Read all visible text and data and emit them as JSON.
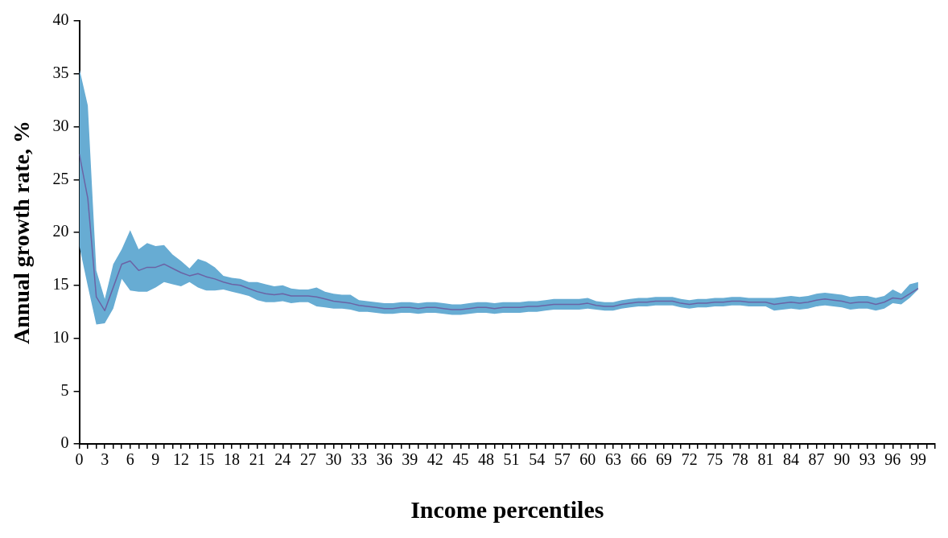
{
  "chart_data": {
    "type": "line",
    "xlabel": "Income percentiles",
    "ylabel": "Annual growth rate, %",
    "x": [
      0,
      1,
      2,
      3,
      4,
      5,
      6,
      7,
      8,
      9,
      10,
      11,
      12,
      13,
      14,
      15,
      16,
      17,
      18,
      19,
      20,
      21,
      22,
      23,
      24,
      25,
      26,
      27,
      28,
      29,
      30,
      31,
      32,
      33,
      34,
      35,
      36,
      37,
      38,
      39,
      40,
      41,
      42,
      43,
      44,
      45,
      46,
      47,
      48,
      49,
      50,
      51,
      52,
      53,
      54,
      55,
      56,
      57,
      58,
      59,
      60,
      61,
      62,
      63,
      64,
      65,
      66,
      67,
      68,
      69,
      70,
      71,
      72,
      73,
      74,
      75,
      76,
      77,
      78,
      79,
      80,
      81,
      82,
      83,
      84,
      85,
      86,
      87,
      88,
      89,
      90,
      91,
      92,
      93,
      94,
      95,
      96,
      97,
      98,
      99
    ],
    "series": [
      {
        "color": "#6b63a5",
        "values": [
          27.4,
          23.2,
          13.9,
          12.6,
          14.8,
          17.0,
          17.3,
          16.4,
          16.7,
          16.7,
          17.0,
          16.6,
          16.2,
          15.9,
          16.1,
          15.8,
          15.6,
          15.3,
          15.1,
          15.0,
          14.7,
          14.4,
          14.2,
          14.1,
          14.2,
          14.0,
          14.0,
          14.0,
          13.9,
          13.7,
          13.5,
          13.4,
          13.3,
          13.1,
          13.0,
          12.9,
          12.8,
          12.8,
          12.9,
          12.9,
          12.8,
          12.9,
          12.9,
          12.8,
          12.7,
          12.7,
          12.8,
          12.9,
          12.9,
          12.8,
          12.9,
          12.9,
          12.9,
          13.0,
          13.0,
          13.1,
          13.2,
          13.2,
          13.2,
          13.2,
          13.3,
          13.1,
          13.0,
          13.0,
          13.2,
          13.3,
          13.4,
          13.4,
          13.5,
          13.5,
          13.5,
          13.3,
          13.2,
          13.3,
          13.3,
          13.4,
          13.4,
          13.5,
          13.5,
          13.4,
          13.4,
          13.4,
          13.2,
          13.3,
          13.4,
          13.3,
          13.4,
          13.6,
          13.7,
          13.6,
          13.5,
          13.3,
          13.4,
          13.4,
          13.2,
          13.4,
          13.8,
          13.7,
          14.2,
          14.7
        ],
        "lower": [
          18.7,
          14.9,
          11.3,
          11.4,
          12.8,
          15.6,
          14.5,
          14.4,
          14.4,
          14.8,
          15.3,
          15.1,
          14.9,
          15.3,
          14.8,
          14.5,
          14.5,
          14.6,
          14.4,
          14.2,
          14.0,
          13.6,
          13.4,
          13.4,
          13.5,
          13.3,
          13.4,
          13.4,
          13.0,
          12.9,
          12.8,
          12.8,
          12.7,
          12.5,
          12.5,
          12.4,
          12.3,
          12.3,
          12.4,
          12.4,
          12.3,
          12.4,
          12.4,
          12.3,
          12.2,
          12.2,
          12.3,
          12.4,
          12.4,
          12.3,
          12.4,
          12.4,
          12.4,
          12.5,
          12.5,
          12.6,
          12.7,
          12.7,
          12.7,
          12.7,
          12.8,
          12.7,
          12.6,
          12.6,
          12.8,
          12.9,
          13.0,
          13.0,
          13.1,
          13.1,
          13.1,
          12.9,
          12.8,
          12.9,
          12.9,
          13.0,
          13.0,
          13.1,
          13.1,
          13.0,
          13.0,
          13.0,
          12.6,
          12.7,
          12.8,
          12.7,
          12.8,
          13.0,
          13.1,
          13.0,
          12.9,
          12.7,
          12.8,
          12.8,
          12.6,
          12.8,
          13.3,
          13.2,
          13.8,
          14.6
        ],
        "upper": [
          35.5,
          32.0,
          16.4,
          13.7,
          17.0,
          18.4,
          20.2,
          18.4,
          19.0,
          18.7,
          18.8,
          17.9,
          17.3,
          16.6,
          17.5,
          17.2,
          16.7,
          15.9,
          15.7,
          15.6,
          15.3,
          15.3,
          15.1,
          14.9,
          15.0,
          14.7,
          14.6,
          14.6,
          14.8,
          14.4,
          14.2,
          14.1,
          14.1,
          13.6,
          13.5,
          13.4,
          13.3,
          13.3,
          13.4,
          13.4,
          13.3,
          13.4,
          13.4,
          13.3,
          13.2,
          13.2,
          13.3,
          13.4,
          13.4,
          13.3,
          13.4,
          13.4,
          13.4,
          13.5,
          13.5,
          13.6,
          13.7,
          13.7,
          13.7,
          13.7,
          13.8,
          13.5,
          13.4,
          13.4,
          13.6,
          13.7,
          13.8,
          13.8,
          13.9,
          13.9,
          13.9,
          13.7,
          13.6,
          13.7,
          13.7,
          13.8,
          13.8,
          13.9,
          13.9,
          13.8,
          13.8,
          13.8,
          13.8,
          13.9,
          14.0,
          13.9,
          14.0,
          14.2,
          14.3,
          14.2,
          14.1,
          13.9,
          14.0,
          14.0,
          13.8,
          14.0,
          14.6,
          14.2,
          15.1,
          15.3
        ]
      }
    ],
    "xlim": [
      0,
      101
    ],
    "ylim": [
      0,
      40
    ],
    "xticks": [
      0,
      {
        "value": 1,
        "label": null
      },
      {
        "value": 2,
        "label": null
      },
      3,
      {
        "value": 4,
        "label": null
      },
      {
        "value": 5,
        "label": null
      },
      6,
      {
        "value": 7,
        "label": null
      },
      {
        "value": 8,
        "label": null
      },
      9,
      {
        "value": 10,
        "label": null
      },
      {
        "value": 11,
        "label": null
      },
      12,
      {
        "value": 13,
        "label": null
      },
      {
        "value": 14,
        "label": null
      },
      15,
      {
        "value": 16,
        "label": null
      },
      {
        "value": 17,
        "label": null
      },
      18,
      {
        "value": 19,
        "label": null
      },
      {
        "value": 20,
        "label": null
      },
      21,
      {
        "value": 22,
        "label": null
      },
      {
        "value": 23,
        "label": null
      },
      24,
      {
        "value": 25,
        "label": null
      },
      {
        "value": 26,
        "label": null
      },
      27,
      {
        "value": 28,
        "label": null
      },
      {
        "value": 29,
        "label": null
      },
      30,
      {
        "value": 31,
        "label": null
      },
      {
        "value": 32,
        "label": null
      },
      33,
      {
        "value": 34,
        "label": null
      },
      {
        "value": 35,
        "label": null
      },
      36,
      {
        "value": 37,
        "label": null
      },
      {
        "value": 38,
        "label": null
      },
      39,
      {
        "value": 40,
        "label": null
      },
      {
        "value": 41,
        "label": null
      },
      42,
      {
        "value": 43,
        "label": null
      },
      {
        "value": 44,
        "label": null
      },
      45,
      {
        "value": 46,
        "label": null
      },
      {
        "value": 47,
        "label": null
      },
      48,
      {
        "value": 49,
        "label": null
      },
      {
        "value": 50,
        "label": null
      },
      51,
      {
        "value": 52,
        "label": null
      },
      {
        "value": 53,
        "label": null
      },
      54,
      {
        "value": 55,
        "label": null
      },
      {
        "value": 56,
        "label": null
      },
      57,
      {
        "value": 58,
        "label": null
      },
      {
        "value": 59,
        "label": null
      },
      60,
      {
        "value": 61,
        "label": null
      },
      {
        "value": 62,
        "label": null
      },
      63,
      {
        "value": 64,
        "label": null
      },
      {
        "value": 65,
        "label": null
      },
      66,
      {
        "value": 67,
        "label": null
      },
      {
        "value": 68,
        "label": null
      },
      69,
      {
        "value": 70,
        "label": null
      },
      {
        "value": 71,
        "label": null
      },
      72,
      {
        "value": 73,
        "label": null
      },
      {
        "value": 74,
        "label": null
      },
      75,
      {
        "value": 76,
        "label": null
      },
      {
        "value": 77,
        "label": null
      },
      78,
      {
        "value": 79,
        "label": null
      },
      {
        "value": 80,
        "label": null
      },
      81,
      {
        "value": 82,
        "label": null
      },
      {
        "value": 83,
        "label": null
      },
      84,
      {
        "value": 85,
        "label": null
      },
      {
        "value": 86,
        "label": null
      },
      87,
      {
        "value": 88,
        "label": null
      },
      {
        "value": 89,
        "label": null
      },
      90,
      {
        "value": 91,
        "label": null
      },
      {
        "value": 92,
        "label": null
      },
      93,
      {
        "value": 94,
        "label": null
      },
      {
        "value": 95,
        "label": null
      },
      96,
      {
        "value": 97,
        "label": null
      },
      {
        "value": 98,
        "label": null
      },
      99,
      {
        "value": 100,
        "label": null
      },
      {
        "value": 101,
        "label": null
      }
    ],
    "yticks": [
      0,
      5,
      10,
      15,
      20,
      25,
      30,
      35,
      40
    ],
    "grid": false,
    "legend": false,
    "marker": "none"
  }
}
